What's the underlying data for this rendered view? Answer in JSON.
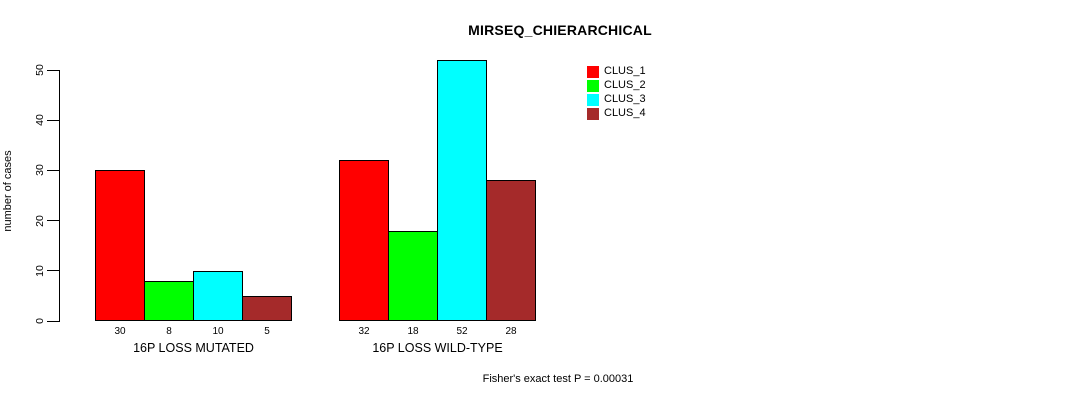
{
  "chart_data": {
    "type": "bar",
    "title": "MIRSEQ_CHIERARCHICAL",
    "xlabel": "",
    "ylabel": "number of cases",
    "annotation": "Fisher's exact test P = 0.00031",
    "ylim": [
      0,
      50
    ],
    "yticks": [
      0,
      10,
      20,
      30,
      40,
      50
    ],
    "grid": false,
    "legend_position": "top-right",
    "bar_border_color": "#000000",
    "series": [
      {
        "name": "CLUS_1",
        "color": "#FF0000"
      },
      {
        "name": "CLUS_2",
        "color": "#00FF00"
      },
      {
        "name": "CLUS_3",
        "color": "#00FFFF"
      },
      {
        "name": "CLUS_4",
        "color": "#A52A2A"
      }
    ],
    "groups": [
      {
        "label": "16P LOSS MUTATED",
        "values": [
          30,
          8,
          10,
          5
        ]
      },
      {
        "label": "16P LOSS WILD-TYPE",
        "values": [
          32,
          18,
          52,
          28
        ]
      }
    ],
    "value_labels_shown": true
  }
}
